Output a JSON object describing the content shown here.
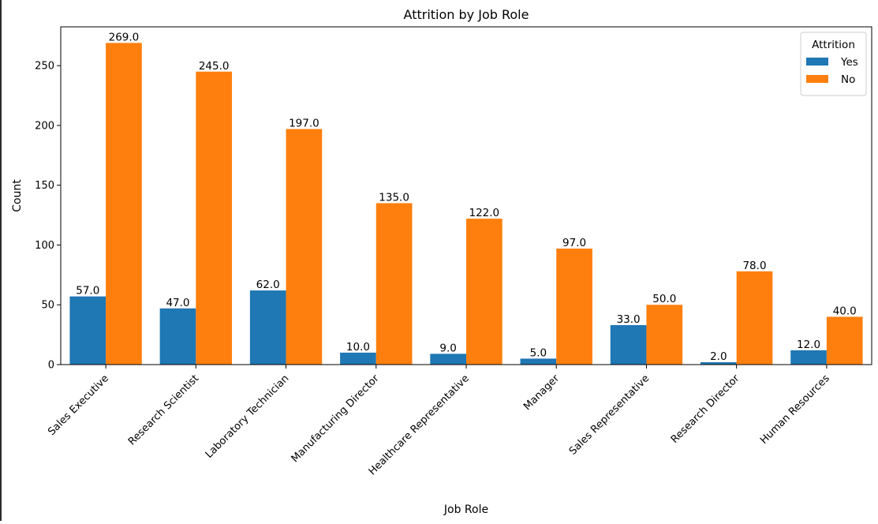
{
  "chart_data": {
    "type": "bar",
    "title": "Attrition by Job Role",
    "xlabel": "Job Role",
    "ylabel": "Count",
    "categories": [
      "Sales Executive",
      "Research Scientist",
      "Laboratory Technician",
      "Manufacturing Director",
      "Healthcare Representative",
      "Manager",
      "Sales Representative",
      "Research Director",
      "Human Resources"
    ],
    "series": [
      {
        "name": "Yes",
        "color": "#1f77b4",
        "values": [
          57,
          47,
          62,
          10,
          9,
          5,
          33,
          2,
          12
        ],
        "labels": [
          "57.0",
          "47.0",
          "62.0",
          "10.0",
          "9.0",
          "5.0",
          "33.0",
          "2.0",
          "12.0"
        ]
      },
      {
        "name": "No",
        "color": "#ff7f0e",
        "values": [
          269,
          245,
          197,
          135,
          122,
          97,
          50,
          78,
          40
        ],
        "labels": [
          "269.0",
          "245.0",
          "197.0",
          "135.0",
          "122.0",
          "97.0",
          "50.0",
          "78.0",
          "40.0"
        ]
      }
    ],
    "ylim": [
      0,
      282.45
    ],
    "yticks": [
      0,
      50,
      100,
      150,
      200,
      250
    ],
    "legend": {
      "title": "Attrition",
      "placement": "top-right"
    },
    "grid": false
  }
}
